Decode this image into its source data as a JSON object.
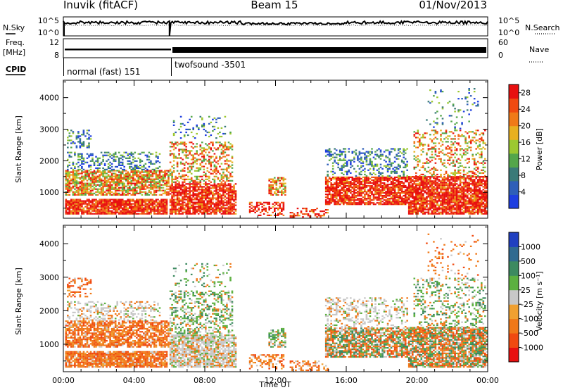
{
  "header": {
    "station": "Inuvik (fitACF)",
    "beam": "Beam 15",
    "date": "01/Nov/2013"
  },
  "status_panel": {
    "nsky_label": "N.Sky",
    "nsky_ticks": [
      "10^5",
      "10^0"
    ],
    "nsearch_label": "N.Search",
    "nsearch_ticks": [
      "10^5",
      "10^0"
    ],
    "freq_label_1": "Freq.",
    "freq_label_2": "[MHz]",
    "freq_ticks": [
      "12",
      "8"
    ],
    "nave_label": "Nave",
    "nave_ticks": [
      "60",
      "0"
    ],
    "cpid_label": "CPID",
    "cpid_modes": [
      {
        "name": "normal (fast) 151",
        "start_hour": 0,
        "end_hour": 6
      },
      {
        "name": "twofsound -3501",
        "start_hour": 6,
        "end_hour": 24
      }
    ]
  },
  "chart_data": [
    {
      "type": "heatmap",
      "quantity": "power",
      "xlabel": "",
      "ylabel": "Slant Range [km]",
      "xlim": [
        0,
        24
      ],
      "ylim": [
        180,
        4550
      ],
      "yticks": [
        "1000",
        "2000",
        "3000",
        "4000"
      ],
      "colorbar_label": "Power [dB]",
      "colorbar_ticks": [
        "4",
        "8",
        "12",
        "16",
        "20",
        "24",
        "28"
      ],
      "colorbar_colors": [
        "#1f3fe0",
        "#2f5fb8",
        "#3a7a78",
        "#54a64a",
        "#9cc830",
        "#e8b020",
        "#f07a18",
        "#f04a10",
        "#e81010"
      ],
      "colorbar_range": [
        0,
        30
      ]
    },
    {
      "type": "heatmap",
      "quantity": "velocity",
      "xlabel": "Time UT",
      "ylabel": "Slant Range [km]",
      "xlim": [
        0,
        24
      ],
      "ylim": [
        180,
        4550
      ],
      "xticks": [
        "00:00",
        "04:00",
        "08:00",
        "12:00",
        "16:00",
        "20:00",
        "00:00"
      ],
      "yticks": [
        "1000",
        "2000",
        "3000",
        "4000"
      ],
      "colorbar_label": "Velocity [m s⁻¹]",
      "colorbar_ticks": [
        "1000",
        "500",
        "100",
        "25",
        "-25",
        "-100",
        "-500",
        "-1000"
      ],
      "colorbar_colors": [
        "#2040c0",
        "#306a90",
        "#3c8a60",
        "#5cb040",
        "#c8c8c8",
        "#f0a030",
        "#f07818",
        "#f04a10",
        "#e81010"
      ]
    }
  ]
}
